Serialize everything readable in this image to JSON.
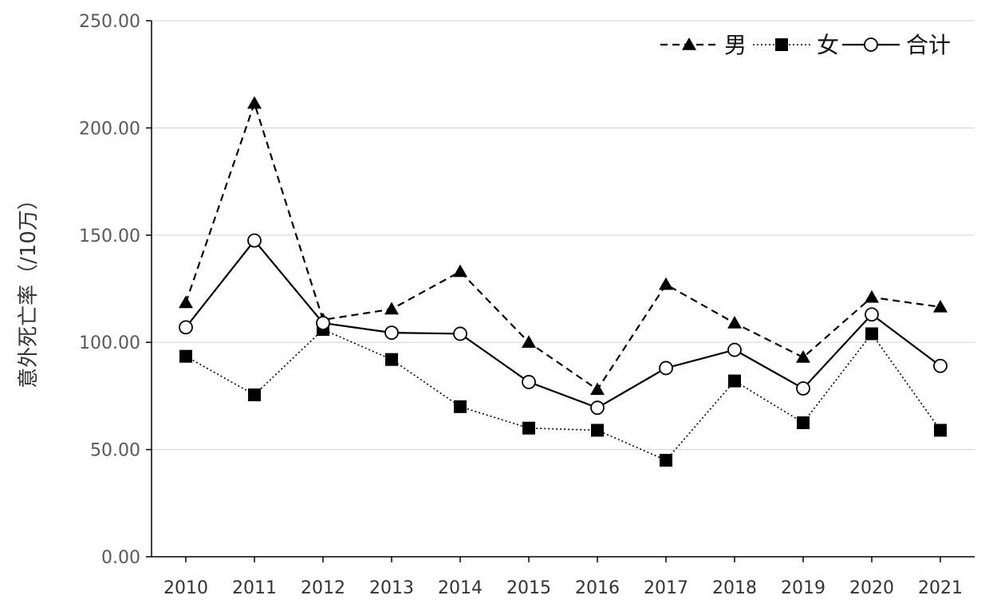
{
  "chart_data": {
    "type": "line",
    "title": "",
    "xlabel": "",
    "ylabel": "意外死亡率（/10万）",
    "categories": [
      "2010",
      "2011",
      "2012",
      "2013",
      "2014",
      "2015",
      "2016",
      "2017",
      "2018",
      "2019",
      "2020",
      "2021"
    ],
    "ylim": [
      0,
      250
    ],
    "yticks": [
      "0.00",
      "50.00",
      "100.00",
      "150.00",
      "200.00",
      "250.00"
    ],
    "grid": true,
    "legend_position": "top-right",
    "series": [
      {
        "name": "男",
        "marker": "triangle",
        "line": "dashed",
        "color": "#000000",
        "values": [
          118.5,
          211.5,
          110.5,
          115.5,
          133.0,
          100.0,
          78.0,
          127.0,
          109.0,
          93.0,
          121.0,
          116.5
        ]
      },
      {
        "name": "女",
        "marker": "square",
        "line": "dotted",
        "color": "#000000",
        "values": [
          93.5,
          75.5,
          106.0,
          92.0,
          70.0,
          60.0,
          59.0,
          45.0,
          82.0,
          62.5,
          104.0,
          59.0
        ]
      },
      {
        "name": "合计",
        "marker": "circle-open",
        "line": "solid",
        "color": "#000000",
        "values": [
          107.0,
          147.5,
          109.0,
          104.5,
          104.0,
          81.5,
          69.5,
          88.0,
          96.5,
          78.5,
          113.0,
          89.0
        ]
      }
    ]
  }
}
